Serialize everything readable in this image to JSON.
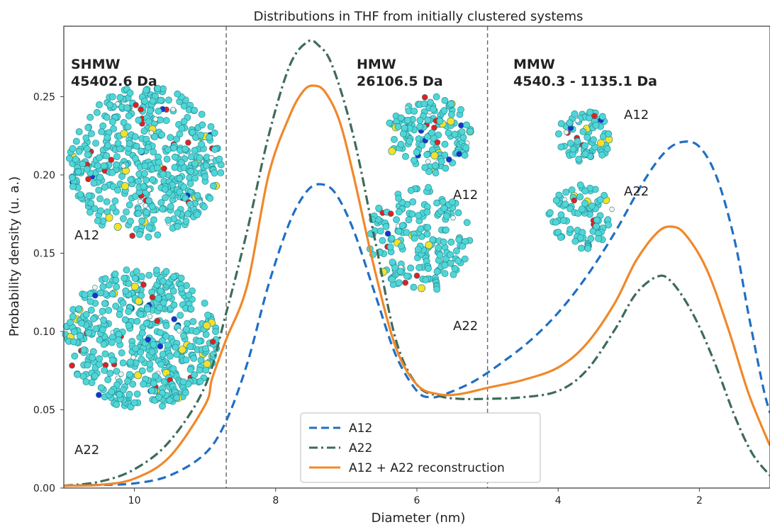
{
  "chart_data": {
    "type": "line",
    "title": "Distributions in THF from initially clustered systems",
    "xlabel": "Diameter (nm)",
    "ylabel": "Probability density (u. a.)",
    "x_reversed": true,
    "xlim": [
      11.0,
      1.0
    ],
    "ylim": [
      0.0,
      0.295
    ],
    "xticks": [
      10,
      8,
      6,
      4,
      2
    ],
    "yticks": [
      0.0,
      0.05,
      0.1,
      0.15,
      0.2,
      0.25
    ],
    "grid": false,
    "legend_position": "bottom-center",
    "vlines": [
      8.7,
      5.0
    ],
    "regions": [
      {
        "name": "SHMW",
        "mass": "45402.6 Da"
      },
      {
        "name": "HMW",
        "mass": "26106.5 Da"
      },
      {
        "name": "MMW",
        "mass": "4540.3 - 1135.1 Da"
      }
    ],
    "structure_labels": [
      "A12",
      "A22",
      "A12",
      "A22",
      "A12",
      "A22"
    ],
    "series": [
      {
        "name": "A12",
        "color": "#1f6fc5",
        "style": "dashed",
        "points": [
          [
            11.0,
            0.0015
          ],
          [
            10.5,
            0.002
          ],
          [
            10.0,
            0.003
          ],
          [
            9.5,
            0.008
          ],
          [
            9.0,
            0.022
          ],
          [
            8.7,
            0.043
          ],
          [
            8.4,
            0.08
          ],
          [
            8.1,
            0.13
          ],
          [
            7.8,
            0.17
          ],
          [
            7.55,
            0.19
          ],
          [
            7.35,
            0.194
          ],
          [
            7.15,
            0.188
          ],
          [
            6.9,
            0.165
          ],
          [
            6.6,
            0.125
          ],
          [
            6.3,
            0.085
          ],
          [
            6.0,
            0.062
          ],
          [
            5.8,
            0.058
          ],
          [
            5.6,
            0.06
          ],
          [
            5.2,
            0.068
          ],
          [
            4.8,
            0.08
          ],
          [
            4.4,
            0.094
          ],
          [
            4.0,
            0.112
          ],
          [
            3.6,
            0.135
          ],
          [
            3.2,
            0.163
          ],
          [
            2.8,
            0.195
          ],
          [
            2.5,
            0.214
          ],
          [
            2.25,
            0.221
          ],
          [
            2.0,
            0.218
          ],
          [
            1.75,
            0.198
          ],
          [
            1.5,
            0.158
          ],
          [
            1.3,
            0.11
          ],
          [
            1.1,
            0.065
          ],
          [
            1.0,
            0.048
          ]
        ]
      },
      {
        "name": "A22",
        "color": "#3e6b5a",
        "style": "dashdot",
        "points": [
          [
            11.0,
            0.0015
          ],
          [
            10.5,
            0.004
          ],
          [
            10.0,
            0.012
          ],
          [
            9.5,
            0.03
          ],
          [
            9.0,
            0.065
          ],
          [
            8.7,
            0.112
          ],
          [
            8.4,
            0.165
          ],
          [
            8.1,
            0.225
          ],
          [
            7.8,
            0.27
          ],
          [
            7.55,
            0.285
          ],
          [
            7.4,
            0.283
          ],
          [
            7.2,
            0.27
          ],
          [
            6.9,
            0.225
          ],
          [
            6.6,
            0.16
          ],
          [
            6.3,
            0.095
          ],
          [
            6.0,
            0.066
          ],
          [
            5.7,
            0.059
          ],
          [
            5.4,
            0.057
          ],
          [
            5.0,
            0.057
          ],
          [
            4.5,
            0.058
          ],
          [
            4.0,
            0.062
          ],
          [
            3.6,
            0.075
          ],
          [
            3.2,
            0.101
          ],
          [
            2.9,
            0.124
          ],
          [
            2.6,
            0.135
          ],
          [
            2.4,
            0.132
          ],
          [
            2.1,
            0.112
          ],
          [
            1.8,
            0.082
          ],
          [
            1.5,
            0.046
          ],
          [
            1.25,
            0.022
          ],
          [
            1.0,
            0.008
          ]
        ]
      },
      {
        "name": "A12 + A22 reconstruction",
        "color": "#f0882a",
        "style": "solid",
        "points": [
          [
            11.0,
            0.0015
          ],
          [
            10.5,
            0.002
          ],
          [
            10.0,
            0.006
          ],
          [
            9.5,
            0.02
          ],
          [
            9.0,
            0.053
          ],
          [
            8.9,
            0.07
          ],
          [
            8.7,
            0.095
          ],
          [
            8.4,
            0.13
          ],
          [
            8.1,
            0.2
          ],
          [
            7.8,
            0.238
          ],
          [
            7.6,
            0.254
          ],
          [
            7.45,
            0.257
          ],
          [
            7.3,
            0.253
          ],
          [
            7.1,
            0.235
          ],
          [
            6.9,
            0.2
          ],
          [
            6.6,
            0.14
          ],
          [
            6.3,
            0.09
          ],
          [
            6.0,
            0.066
          ],
          [
            5.7,
            0.06
          ],
          [
            5.4,
            0.06
          ],
          [
            5.0,
            0.064
          ],
          [
            4.5,
            0.069
          ],
          [
            4.0,
            0.077
          ],
          [
            3.6,
            0.092
          ],
          [
            3.2,
            0.118
          ],
          [
            2.9,
            0.145
          ],
          [
            2.6,
            0.163
          ],
          [
            2.4,
            0.167
          ],
          [
            2.2,
            0.162
          ],
          [
            1.9,
            0.14
          ],
          [
            1.6,
            0.103
          ],
          [
            1.3,
            0.06
          ],
          [
            1.0,
            0.027
          ]
        ]
      }
    ]
  }
}
